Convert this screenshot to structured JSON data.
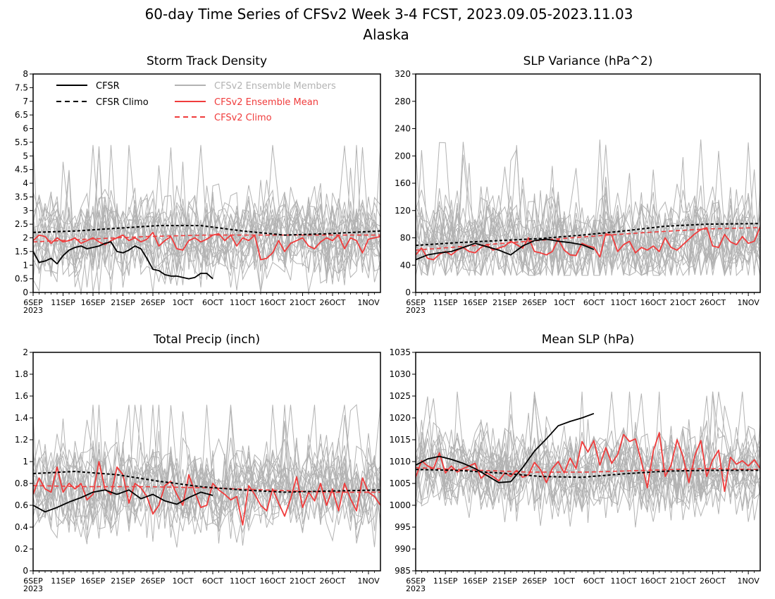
{
  "figure": {
    "title": "60-day Time Series of CFSv2 Week 3-4 FCST, 2023.09.05-2023.11.03",
    "subtitle": "Alaska",
    "x_ticks": [
      "6SEP",
      "11SEP",
      "16SEP",
      "21SEP",
      "26SEP",
      "1OCT",
      "6OCT",
      "11OCT",
      "16OCT",
      "21OCT",
      "26OCT",
      "1NOV"
    ],
    "x_year": "2023"
  },
  "legend": {
    "placement": "top of Storm Track Density panel",
    "items": [
      {
        "label": "CFSR",
        "color": "#000000",
        "dash": "solid"
      },
      {
        "label": "CFSR Climo",
        "color": "#000000",
        "dash": "dashed"
      },
      {
        "label": "CFSv2 Ensemble Members",
        "color": "#b3b3b3",
        "dash": "solid"
      },
      {
        "label": "CFSv2 Ensemble Mean",
        "color": "#f03c3c",
        "dash": "solid"
      },
      {
        "label": "CFSv2 Climo",
        "color": "#f03c3c",
        "dash": "dashed"
      }
    ]
  },
  "colors": {
    "cfsr": "#000000",
    "members": "#b3b3b3",
    "ensemble_mean": "#f03c3c",
    "axes": "#000000"
  },
  "chart_data": [
    {
      "type": "line",
      "title": "Storm Track Density",
      "x_unit": "day of period (1 = 6SEP)",
      "xlim": [
        1,
        59
      ],
      "ylim": [
        0,
        8
      ],
      "y_ticks": [
        "0",
        "0.5",
        "1",
        "1.5",
        "2",
        "2.5",
        "3",
        "3.5",
        "4",
        "4.5",
        "5",
        "5.5",
        "6",
        "6.5",
        "7",
        "7.5",
        "8"
      ],
      "grid": false,
      "ensemble_members": {
        "count": 20,
        "visible_range": [
          0.0,
          5.4
        ],
        "approx_mean": 2.0
      },
      "series": [
        {
          "name": "CFSR",
          "x": [
            1,
            2,
            3,
            4,
            5,
            6,
            7,
            8,
            9,
            10,
            11,
            12,
            13,
            14,
            15,
            16,
            17,
            18,
            19,
            20,
            21,
            22,
            23,
            24,
            25,
            26,
            27,
            28,
            29,
            30,
            31
          ],
          "y": [
            1.5,
            1.1,
            1.15,
            1.25,
            1.05,
            1.35,
            1.55,
            1.65,
            1.7,
            1.6,
            1.65,
            1.7,
            1.8,
            1.85,
            1.5,
            1.45,
            1.55,
            1.7,
            1.6,
            1.25,
            0.85,
            0.8,
            0.65,
            0.6,
            0.6,
            0.55,
            0.5,
            0.55,
            0.7,
            0.7,
            0.5
          ]
        },
        {
          "name": "CFSR Climo",
          "x": [
            1,
            8,
            15,
            22,
            29,
            36,
            43,
            50,
            59
          ],
          "y": [
            2.2,
            2.25,
            2.35,
            2.45,
            2.45,
            2.25,
            2.1,
            2.15,
            2.25
          ]
        },
        {
          "name": "CFSv2 Ensemble Mean",
          "x": [
            1,
            2,
            3,
            4,
            5,
            6,
            7,
            8,
            9,
            10,
            11,
            12,
            13,
            14,
            15,
            16,
            17,
            18,
            19,
            20,
            21,
            22,
            23,
            24,
            25,
            26,
            27,
            28,
            29,
            30,
            31,
            32,
            33,
            34,
            35,
            36,
            37,
            38,
            39,
            40,
            41,
            42,
            43,
            44,
            45,
            46,
            47,
            48,
            49,
            50,
            51,
            52,
            53,
            54,
            55,
            56,
            57,
            58,
            59
          ],
          "y": [
            1.9,
            2.1,
            2.05,
            1.8,
            2.0,
            1.85,
            1.9,
            2.0,
            1.8,
            1.9,
            2.0,
            1.85,
            1.75,
            1.9,
            2.0,
            2.1,
            1.9,
            2.0,
            1.85,
            1.95,
            2.2,
            1.7,
            1.9,
            2.05,
            1.6,
            1.55,
            1.9,
            2.0,
            1.85,
            1.95,
            2.1,
            2.15,
            1.9,
            2.1,
            1.7,
            2.0,
            1.9,
            2.1,
            1.2,
            1.25,
            1.45,
            1.9,
            1.5,
            1.8,
            1.9,
            2.0,
            1.7,
            1.6,
            1.85,
            2.0,
            1.9,
            2.1,
            1.6,
            2.0,
            1.9,
            1.45,
            1.95,
            2.0,
            2.05
          ]
        },
        {
          "name": "CFSv2 Climo",
          "x": [
            1,
            10,
            20,
            30,
            40,
            50,
            59
          ],
          "y": [
            1.85,
            1.95,
            2.05,
            2.1,
            2.1,
            2.1,
            2.1
          ]
        }
      ]
    },
    {
      "type": "line",
      "title": "SLP Variance (hPa^2)",
      "x_unit": "day of period (1 = 6SEP)",
      "xlim": [
        1,
        59
      ],
      "ylim": [
        0,
        320
      ],
      "y_ticks": [
        "0",
        "40",
        "80",
        "120",
        "160",
        "200",
        "240",
        "280",
        "320"
      ],
      "grid": false,
      "ensemble_members": {
        "count": 20,
        "visible_range": [
          25,
          240
        ],
        "approx_mean": 75
      },
      "series": [
        {
          "name": "CFSR",
          "x": [
            1,
            3,
            5,
            7,
            9,
            11,
            13,
            15,
            17,
            19,
            21,
            23,
            25,
            27,
            29,
            31
          ],
          "y": [
            48,
            55,
            58,
            60,
            66,
            72,
            67,
            62,
            55,
            68,
            76,
            78,
            75,
            73,
            70,
            63
          ]
        },
        {
          "name": "CFSR Climo",
          "x": [
            1,
            8,
            15,
            22,
            29,
            36,
            43,
            50,
            59
          ],
          "y": [
            69,
            73,
            76,
            79,
            84,
            90,
            97,
            100,
            101
          ]
        },
        {
          "name": "CFSv2 Ensemble Mean",
          "x": [
            1,
            2,
            3,
            4,
            5,
            6,
            7,
            8,
            9,
            10,
            11,
            12,
            13,
            14,
            15,
            16,
            17,
            18,
            19,
            20,
            21,
            22,
            23,
            24,
            25,
            26,
            27,
            28,
            29,
            30,
            31,
            32,
            33,
            34,
            35,
            36,
            37,
            38,
            39,
            40,
            41,
            42,
            43,
            44,
            45,
            46,
            47,
            48,
            49,
            50,
            51,
            52,
            53,
            54,
            55,
            56,
            57,
            58,
            59
          ],
          "y": [
            55,
            65,
            50,
            48,
            56,
            60,
            55,
            62,
            66,
            60,
            58,
            66,
            70,
            62,
            65,
            68,
            75,
            70,
            65,
            80,
            60,
            58,
            55,
            60,
            78,
            62,
            55,
            54,
            72,
            68,
            66,
            52,
            86,
            84,
            60,
            70,
            75,
            58,
            66,
            62,
            68,
            60,
            80,
            66,
            62,
            70,
            78,
            86,
            92,
            95,
            68,
            66,
            85,
            74,
            70,
            82,
            72,
            75,
            96
          ]
        },
        {
          "name": "CFSv2 Climo",
          "x": [
            1,
            10,
            20,
            30,
            40,
            50,
            59
          ],
          "y": [
            62,
            68,
            75,
            82,
            88,
            93,
            95
          ]
        }
      ]
    },
    {
      "type": "line",
      "title": "Total Precip (inch)",
      "x_unit": "day of period (1 = 6SEP)",
      "xlim": [
        1,
        59
      ],
      "ylim": [
        0,
        2
      ],
      "y_ticks": [
        "0",
        "0.2",
        "0.4",
        "0.6",
        "0.8",
        "1",
        "1.2",
        "1.4",
        "1.6",
        "1.8",
        "2"
      ],
      "grid": false,
      "ensemble_members": {
        "count": 20,
        "visible_range": [
          0.15,
          1.52
        ],
        "approx_mean": 0.75
      },
      "series": [
        {
          "name": "CFSR",
          "x": [
            1,
            3,
            5,
            7,
            9,
            11,
            13,
            15,
            17,
            19,
            21,
            23,
            25,
            27,
            29,
            31
          ],
          "y": [
            0.6,
            0.54,
            0.58,
            0.63,
            0.67,
            0.72,
            0.74,
            0.7,
            0.74,
            0.66,
            0.7,
            0.64,
            0.61,
            0.67,
            0.72,
            0.69
          ]
        },
        {
          "name": "CFSR Climo",
          "x": [
            1,
            8,
            15,
            22,
            29,
            36,
            43,
            50,
            59
          ],
          "y": [
            0.89,
            0.91,
            0.88,
            0.82,
            0.77,
            0.74,
            0.72,
            0.73,
            0.74
          ]
        },
        {
          "name": "CFSv2 Ensemble Mean",
          "x": [
            1,
            2,
            3,
            4,
            5,
            6,
            7,
            8,
            9,
            10,
            11,
            12,
            13,
            14,
            15,
            16,
            17,
            18,
            19,
            20,
            21,
            22,
            23,
            24,
            25,
            26,
            27,
            28,
            29,
            30,
            31,
            32,
            33,
            34,
            35,
            36,
            37,
            38,
            39,
            40,
            41,
            42,
            43,
            44,
            45,
            46,
            47,
            48,
            49,
            50,
            51,
            52,
            53,
            54,
            55,
            56,
            57,
            58,
            59
          ],
          "y": [
            0.7,
            0.85,
            0.75,
            0.72,
            0.95,
            0.72,
            0.8,
            0.75,
            0.8,
            0.65,
            0.7,
            1.0,
            0.75,
            0.7,
            0.95,
            0.88,
            0.62,
            0.8,
            0.76,
            0.68,
            0.52,
            0.6,
            0.78,
            0.82,
            0.7,
            0.6,
            0.88,
            0.72,
            0.58,
            0.6,
            0.8,
            0.74,
            0.7,
            0.65,
            0.68,
            0.42,
            0.78,
            0.7,
            0.6,
            0.55,
            0.75,
            0.62,
            0.5,
            0.66,
            0.86,
            0.58,
            0.72,
            0.64,
            0.8,
            0.6,
            0.75,
            0.55,
            0.8,
            0.66,
            0.55,
            0.85,
            0.72,
            0.68,
            0.6
          ]
        },
        {
          "name": "CFSv2 Climo",
          "x": [
            1,
            10,
            20,
            30,
            40,
            50,
            59
          ],
          "y": [
            0.78,
            0.77,
            0.77,
            0.76,
            0.74,
            0.72,
            0.72
          ]
        }
      ]
    },
    {
      "type": "line",
      "title": "Mean SLP (hPa)",
      "x_unit": "day of period (1 = 6SEP)",
      "xlim": [
        1,
        59
      ],
      "ylim": [
        985,
        1035
      ],
      "y_ticks": [
        "985",
        "990",
        "995",
        "1000",
        "1005",
        "1010",
        "1015",
        "1020",
        "1025",
        "1030",
        "1035"
      ],
      "grid": false,
      "ensemble_members": {
        "count": 20,
        "visible_range": [
          994,
          1026
        ],
        "approx_mean": 1008
      },
      "series": [
        {
          "name": "CFSR",
          "x": [
            1,
            3,
            5,
            7,
            9,
            11,
            13,
            15,
            17,
            19,
            21,
            23,
            25,
            27,
            29,
            31
          ],
          "y": [
            1009.2,
            1010.6,
            1011.2,
            1010.5,
            1009.6,
            1008.4,
            1006.8,
            1005.2,
            1005.4,
            1008.6,
            1012.4,
            1015.2,
            1018.2,
            1019.2,
            1020.0,
            1021.0
          ]
        },
        {
          "name": "CFSR Climo",
          "x": [
            1,
            8,
            15,
            22,
            29,
            36,
            43,
            50,
            59
          ],
          "y": [
            1008.2,
            1008.0,
            1007.4,
            1006.6,
            1006.4,
            1007.2,
            1007.8,
            1008.0,
            1008.0
          ]
        },
        {
          "name": "CFSv2 Ensemble Mean",
          "x": [
            1,
            2,
            3,
            4,
            5,
            6,
            7,
            8,
            9,
            10,
            11,
            12,
            13,
            14,
            15,
            16,
            17,
            18,
            19,
            20,
            21,
            22,
            23,
            24,
            25,
            26,
            27,
            28,
            29,
            30,
            31,
            32,
            33,
            34,
            35,
            36,
            37,
            38,
            39,
            40,
            41,
            42,
            43,
            44,
            45,
            46,
            47,
            48,
            49,
            50,
            51,
            52,
            53,
            54,
            55,
            56,
            57,
            58,
            59
          ],
          "y": [
            1006.4,
            1010.2,
            1009.0,
            1008.4,
            1012.0,
            1007.4,
            1009.0,
            1007.6,
            1008.4,
            1009.0,
            1009.6,
            1006.2,
            1007.4,
            1006.6,
            1005.6,
            1007.4,
            1006.6,
            1008.0,
            1006.4,
            1007.0,
            1009.8,
            1008.2,
            1005.2,
            1008.4,
            1010.0,
            1007.4,
            1010.8,
            1008.4,
            1014.6,
            1012.2,
            1014.8,
            1009.2,
            1013.2,
            1009.6,
            1011.6,
            1016.2,
            1014.6,
            1015.2,
            1010.0,
            1004.0,
            1012.4,
            1016.6,
            1006.6,
            1009.2,
            1015.0,
            1011.2,
            1005.2,
            1011.4,
            1014.8,
            1006.6,
            1010.4,
            1012.6,
            1003.2,
            1011.0,
            1009.4,
            1010.2,
            1009.0,
            1010.4,
            1008.4
          ]
        },
        {
          "name": "CFSv2 Climo",
          "x": [
            1,
            10,
            20,
            30,
            40,
            50,
            59
          ],
          "y": [
            1008.6,
            1008.1,
            1007.6,
            1007.6,
            1008.0,
            1008.4,
            1008.2
          ]
        }
      ]
    }
  ]
}
